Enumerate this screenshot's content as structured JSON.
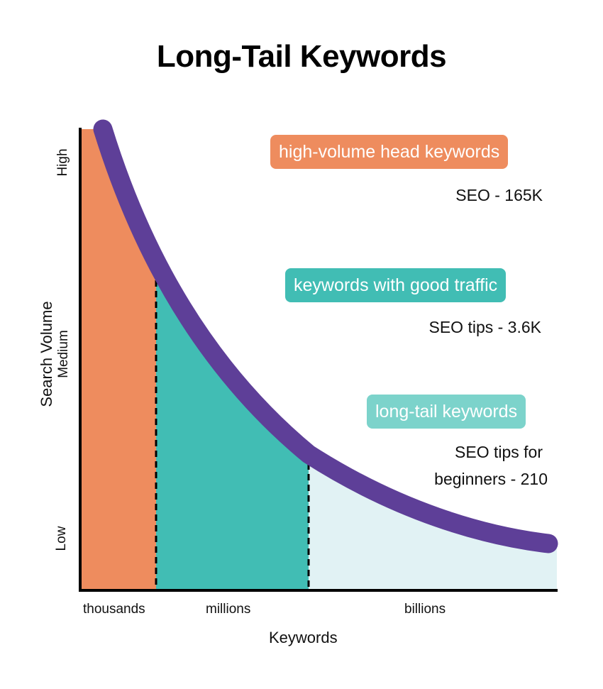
{
  "title": "Long-Tail Keywords",
  "y_axis": {
    "label": "Search Volume",
    "ticks": [
      "High",
      "Medium",
      "Low"
    ]
  },
  "x_axis": {
    "label": "Keywords",
    "ticks": [
      "thousands",
      "millions",
      "billions"
    ]
  },
  "segments": [
    {
      "label": "high-volume head keywords",
      "example": "SEO - 165K",
      "color": "#EE8C5E"
    },
    {
      "label": "keywords with good traffic",
      "example": "SEO tips - 3.6K",
      "color": "#41BDB4"
    },
    {
      "label": "long-tail keywords",
      "example_line1": "SEO tips for",
      "example_line2": "beginners - 210",
      "color": "#7CD3CB"
    }
  ],
  "colors": {
    "curve": "#5E3F98",
    "tail_fill": "#E1F2F4",
    "axis": "#000000"
  }
}
